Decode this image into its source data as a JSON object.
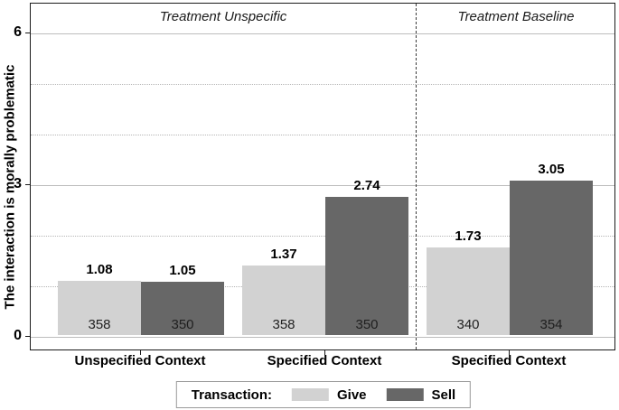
{
  "chart_data": {
    "type": "bar",
    "title": "",
    "xlabel": "",
    "ylabel": "The interaction is morally problematic",
    "ylim": [
      0,
      6.6
    ],
    "yticks": [
      0,
      3,
      6
    ],
    "solid_gridlines": [
      0,
      3,
      6
    ],
    "dotted_gridlines": [
      1,
      2,
      4,
      5
    ],
    "grid": true,
    "legend_position": "bottom",
    "legend": {
      "title": "Transaction:",
      "entries": [
        {
          "label": "Give",
          "color": "#d2d2d2"
        },
        {
          "label": "Sell",
          "color": "#676767"
        }
      ]
    },
    "panels": [
      {
        "label": "Treatment Unspecific",
        "groups": [
          {
            "category": "Unspecified Context",
            "bars": [
              {
                "series": "Give",
                "value": 1.08,
                "n": 358
              },
              {
                "series": "Sell",
                "value": 1.05,
                "n": 350
              }
            ]
          },
          {
            "category": "Specified Context",
            "bars": [
              {
                "series": "Give",
                "value": 1.37,
                "n": 358
              },
              {
                "series": "Sell",
                "value": 2.74,
                "n": 350
              }
            ]
          }
        ]
      },
      {
        "label": "Treatment Baseline",
        "groups": [
          {
            "category": "Specified Context",
            "bars": [
              {
                "series": "Give",
                "value": 1.73,
                "n": 340
              },
              {
                "series": "Sell",
                "value": 3.05,
                "n": 354
              }
            ]
          }
        ]
      }
    ]
  }
}
